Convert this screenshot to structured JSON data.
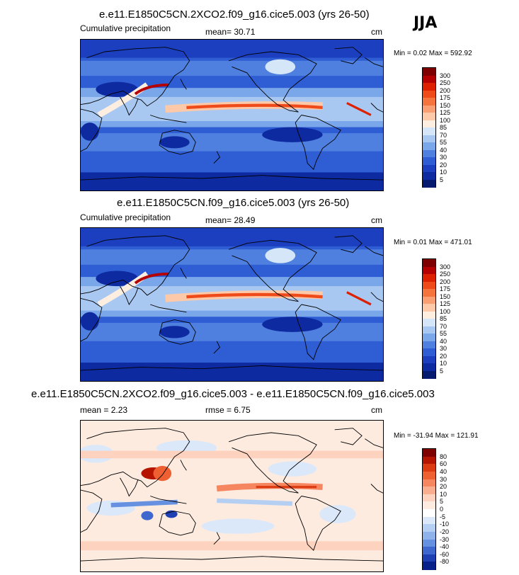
{
  "season": "JJA",
  "panels": [
    {
      "title": "e.e11.E1850C5CN.2XCO2.f09_g16.cice5.003 (yrs 26-50)",
      "left_label": "Cumulative precipitation",
      "mean_label": "mean=  30.71",
      "units": "cm",
      "minmax": "Min =   0.02 Max = 592.92",
      "colorbar": {
        "labels": [
          "300",
          "250",
          "200",
          "175",
          "150",
          "125",
          "100",
          "85",
          "70",
          "55",
          "40",
          "30",
          "20",
          "10",
          "5"
        ],
        "colors": [
          "#7f0000",
          "#b40000",
          "#dc2000",
          "#ee4a1a",
          "#f5743e",
          "#fa9e74",
          "#fdc9a8",
          "#fdeee0",
          "#d4e6f8",
          "#a8c8f2",
          "#7aa6ea",
          "#4f80e0",
          "#2f5ed4",
          "#1b3fbf",
          "#0e2aa0",
          "#061a70"
        ]
      },
      "variant": "precip"
    },
    {
      "title": "e.e11.E1850C5CN.f09_g16.cice5.003 (yrs 26-50)",
      "left_label": "Cumulative precipitation",
      "mean_label": "mean=  28.49",
      "units": "cm",
      "minmax": "Min =   0.01 Max = 471.01",
      "colorbar": {
        "labels": [
          "300",
          "250",
          "200",
          "175",
          "150",
          "125",
          "100",
          "85",
          "70",
          "55",
          "40",
          "30",
          "20",
          "10",
          "5"
        ],
        "colors": [
          "#7f0000",
          "#b40000",
          "#dc2000",
          "#ee4a1a",
          "#f5743e",
          "#fa9e74",
          "#fdc9a8",
          "#fdeee0",
          "#d4e6f8",
          "#a8c8f2",
          "#7aa6ea",
          "#4f80e0",
          "#2f5ed4",
          "#1b3fbf",
          "#0e2aa0",
          "#061a70"
        ]
      },
      "variant": "precip"
    },
    {
      "title": "e.e11.E1850C5CN.2XCO2.f09_g16.cice5.003 - e.e11.E1850C5CN.f09_g16.cice5.003",
      "left_label": "mean =   2.23",
      "mean_label": "rmse =   6.75",
      "units": "cm",
      "minmax": "Min = -31.94 Max = 121.91",
      "colorbar": {
        "labels": [
          "80",
          "60",
          "40",
          "30",
          "20",
          "10",
          "5",
          "0",
          "-5",
          "-10",
          "-20",
          "-30",
          "-40",
          "-60",
          "-80"
        ],
        "colors": [
          "#7f0000",
          "#b41400",
          "#dc3a10",
          "#ee5f32",
          "#f58660",
          "#faae90",
          "#fdd2bf",
          "#fdebe0",
          "#ffffff",
          "#dbe8fa",
          "#b5cff3",
          "#8fb2ea",
          "#6690e0",
          "#3f68cf",
          "#1f40b2",
          "#08208a"
        ]
      },
      "variant": "diff"
    }
  ]
}
